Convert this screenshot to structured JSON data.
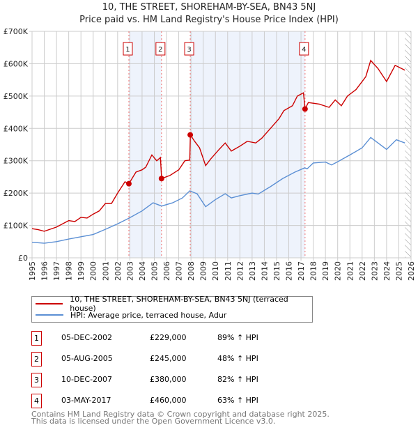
{
  "chart_data": {
    "type": "line",
    "title": "10, THE STREET, SHOREHAM-BY-SEA, BN43 5NJ",
    "subtitle": "Price paid vs. HM Land Registry's House Price Index (HPI)",
    "xlim": [
      1995,
      2026
    ],
    "ylim": [
      0,
      700000
    ],
    "yticks": [
      "£0",
      "£100K",
      "£200K",
      "£300K",
      "£400K",
      "£500K",
      "£600K",
      "£700K"
    ],
    "xticks": [
      "1995",
      "1996",
      "1997",
      "1998",
      "1999",
      "2000",
      "2001",
      "2002",
      "2003",
      "2004",
      "2005",
      "2006",
      "2007",
      "2008",
      "2009",
      "2010",
      "2011",
      "2012",
      "2013",
      "2014",
      "2015",
      "2016",
      "2017",
      "2018",
      "2019",
      "2020",
      "2021",
      "2022",
      "2023",
      "2024",
      "2025",
      "2026"
    ],
    "series": [
      {
        "name": "10, THE STREET, SHOREHAM-BY-SEA, BN43 5NJ (terraced house)",
        "color": "#cc0000",
        "points": [
          [
            1995,
            90
          ],
          [
            1995.5,
            87
          ],
          [
            1996,
            82
          ],
          [
            1997,
            95
          ],
          [
            1998,
            115
          ],
          [
            1998.5,
            112
          ],
          [
            1999,
            125
          ],
          [
            1999.5,
            123
          ],
          [
            2000,
            135
          ],
          [
            2000.5,
            145
          ],
          [
            2001,
            168
          ],
          [
            2001.5,
            168
          ],
          [
            2002,
            200
          ],
          [
            2002.6,
            235
          ],
          [
            2002.92,
            229
          ],
          [
            2003.5,
            265
          ],
          [
            2004,
            272
          ],
          [
            2004.3,
            280
          ],
          [
            2004.8,
            318
          ],
          [
            2005.2,
            300
          ],
          [
            2005.5,
            310
          ],
          [
            2005.6,
            245
          ],
          [
            2006.3,
            255
          ],
          [
            2007,
            272
          ],
          [
            2007.5,
            300
          ],
          [
            2007.9,
            302
          ],
          [
            2007.95,
            380
          ],
          [
            2008.3,
            360
          ],
          [
            2008.7,
            340
          ],
          [
            2009.2,
            285
          ],
          [
            2009.6,
            305
          ],
          [
            2010.3,
            335
          ],
          [
            2010.8,
            355
          ],
          [
            2011.3,
            330
          ],
          [
            2012,
            345
          ],
          [
            2012.6,
            360
          ],
          [
            2013.3,
            355
          ],
          [
            2013.8,
            370
          ],
          [
            2014.5,
            400
          ],
          [
            2015.2,
            430
          ],
          [
            2015.6,
            455
          ],
          [
            2016.3,
            470
          ],
          [
            2016.7,
            500
          ],
          [
            2017.2,
            510
          ],
          [
            2017.33,
            460
          ],
          [
            2017.6,
            480
          ],
          [
            2018.5,
            475
          ],
          [
            2019.3,
            465
          ],
          [
            2019.8,
            488
          ],
          [
            2020.3,
            470
          ],
          [
            2020.8,
            500
          ],
          [
            2021.5,
            520
          ],
          [
            2022.3,
            560
          ],
          [
            2022.7,
            610
          ],
          [
            2023.3,
            585
          ],
          [
            2024,
            545
          ],
          [
            2024.7,
            595
          ],
          [
            2025.5,
            580
          ]
        ]
      },
      {
        "name": "HPI: Average price, terraced house, Adur",
        "color": "#5b8fd4",
        "points": [
          [
            1995,
            48
          ],
          [
            1996,
            45
          ],
          [
            1997,
            50
          ],
          [
            1998,
            58
          ],
          [
            1999,
            65
          ],
          [
            2000,
            72
          ],
          [
            2001,
            88
          ],
          [
            2002,
            105
          ],
          [
            2002.9,
            122
          ],
          [
            2004,
            145
          ],
          [
            2004.9,
            170
          ],
          [
            2005.6,
            160
          ],
          [
            2006.5,
            170
          ],
          [
            2007.3,
            185
          ],
          [
            2007.9,
            207
          ],
          [
            2008.5,
            198
          ],
          [
            2009.2,
            158
          ],
          [
            2010,
            180
          ],
          [
            2010.8,
            198
          ],
          [
            2011.3,
            185
          ],
          [
            2012,
            192
          ],
          [
            2013,
            200
          ],
          [
            2013.5,
            197
          ],
          [
            2014.5,
            220
          ],
          [
            2015.5,
            245
          ],
          [
            2016.5,
            265
          ],
          [
            2017.3,
            278
          ],
          [
            2017.5,
            275
          ],
          [
            2018,
            293
          ],
          [
            2019,
            296
          ],
          [
            2019.5,
            287
          ],
          [
            2020,
            297
          ],
          [
            2021,
            318
          ],
          [
            2022,
            340
          ],
          [
            2022.7,
            372
          ],
          [
            2023.3,
            355
          ],
          [
            2024,
            335
          ],
          [
            2024.8,
            365
          ],
          [
            2025.5,
            355
          ]
        ]
      }
    ],
    "sales": [
      {
        "n": "1",
        "x": 2002.92,
        "y": 229
      },
      {
        "n": "2",
        "x": 2005.59,
        "y": 245
      },
      {
        "n": "3",
        "x": 2007.94,
        "y": 380
      },
      {
        "n": "4",
        "x": 2017.33,
        "y": 460
      }
    ],
    "shaded": [
      [
        2002.92,
        2005.59
      ],
      [
        2007.94,
        2017.33
      ]
    ],
    "forecast_from": 2025.5
  },
  "legend": {
    "red": "10, THE STREET, SHOREHAM-BY-SEA, BN43 5NJ (terraced house)",
    "blue": "HPI: Average price, terraced house, Adur"
  },
  "table": [
    {
      "n": "1",
      "date": "05-DEC-2002",
      "price": "£229,000",
      "hpi": "89% ↑ HPI"
    },
    {
      "n": "2",
      "date": "05-AUG-2005",
      "price": "£245,000",
      "hpi": "48% ↑ HPI"
    },
    {
      "n": "3",
      "date": "10-DEC-2007",
      "price": "£380,000",
      "hpi": "82% ↑ HPI"
    },
    {
      "n": "4",
      "date": "03-MAY-2017",
      "price": "£460,000",
      "hpi": "63% ↑ HPI"
    }
  ],
  "footer": [
    "Contains HM Land Registry data © Crown copyright and database right 2025.",
    "This data is licensed under the Open Government Licence v3.0."
  ]
}
